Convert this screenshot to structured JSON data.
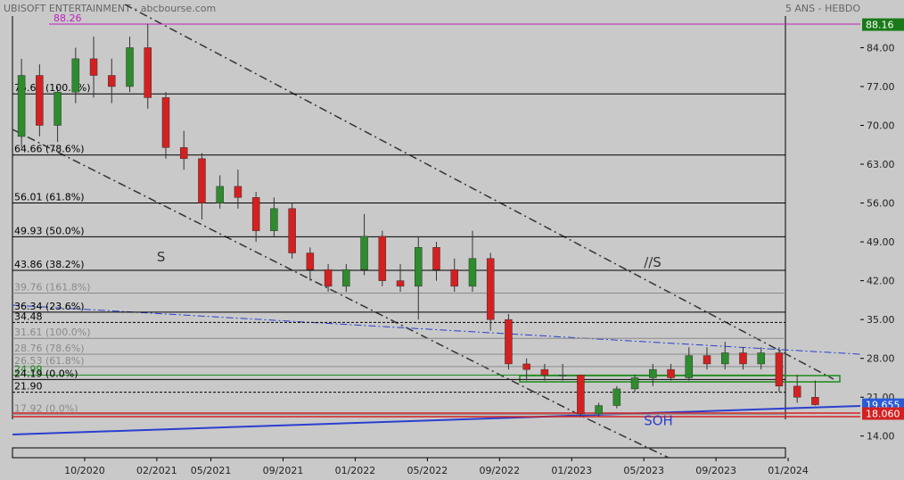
{
  "chart_data": {
    "type": "candlestick",
    "title": "UBISOFT ENTERTAINMENT - abcbourse.com",
    "subtitle": "5 ANS - HEBDO",
    "x": [
      "2020-06",
      "2020-07",
      "2020-08",
      "2020-09",
      "2020-10",
      "2020-11",
      "2020-12",
      "2021-01",
      "2021-02",
      "2021-03",
      "2021-04",
      "2021-05",
      "2021-06",
      "2021-07",
      "2021-08",
      "2021-09",
      "2021-10",
      "2021-11",
      "2021-12",
      "2022-01",
      "2022-02",
      "2022-03",
      "2022-04",
      "2022-05",
      "2022-06",
      "2022-07",
      "2022-08",
      "2022-09",
      "2022-10",
      "2022-11",
      "2022-12",
      "2023-01",
      "2023-02",
      "2023-03",
      "2023-04",
      "2023-05",
      "2023-06",
      "2023-07",
      "2023-08",
      "2023-09",
      "2023-10",
      "2023-11",
      "2023-12",
      "2024-01",
      "2024-02"
    ],
    "open": [
      68,
      79,
      70,
      76,
      82,
      79,
      77,
      84,
      75,
      66,
      64,
      56,
      59,
      57,
      51,
      55,
      47,
      44,
      41,
      44,
      50,
      42,
      41,
      48,
      44,
      41,
      46,
      35,
      27,
      26,
      25,
      25,
      18,
      19.5,
      22.5,
      24.5,
      26,
      24.5,
      28.5,
      27,
      29,
      27,
      29,
      23,
      21
    ],
    "high": [
      82,
      81,
      77,
      84,
      86,
      82,
      86,
      88.26,
      76,
      69,
      65,
      61,
      62,
      58,
      57,
      56,
      48,
      45,
      45,
      54,
      51,
      45,
      50,
      49,
      46,
      51,
      47,
      36,
      28,
      27,
      27,
      25,
      20,
      23,
      25,
      27,
      27,
      30,
      30,
      31,
      30,
      30,
      30,
      25,
      24
    ],
    "low": [
      66,
      68,
      67,
      74,
      75,
      74,
      76,
      73,
      64,
      62,
      53,
      55,
      55,
      49,
      50,
      46,
      42,
      40,
      40,
      43,
      41,
      40,
      35,
      42,
      40,
      40,
      33,
      26,
      24,
      24,
      24,
      17.5,
      17.5,
      19,
      22,
      23,
      24,
      24,
      26,
      26,
      26,
      26,
      22,
      20,
      19.5
    ],
    "close": [
      79,
      70,
      76,
      82,
      79,
      77,
      84,
      75,
      66,
      64,
      56,
      59,
      57,
      51,
      55,
      47,
      44,
      41,
      44,
      50,
      42,
      41,
      48,
      44,
      41,
      46,
      35,
      27,
      26,
      25,
      25,
      18,
      19.5,
      22.5,
      24.5,
      26,
      24.5,
      28.5,
      27,
      29,
      27,
      29,
      23,
      21,
      19.655
    ],
    "up_color": "#2e8b2e",
    "down_color": "#d42020",
    "xlim": [
      "2020-06",
      "2024-05"
    ],
    "xticks": [
      {
        "value": "2020-10",
        "label": "10/2020"
      },
      {
        "value": "2021-02",
        "label": "02/2021"
      },
      {
        "value": "2021-05",
        "label": "05/2021"
      },
      {
        "value": "2021-09",
        "label": "09/2021"
      },
      {
        "value": "2022-01",
        "label": "01/2022"
      },
      {
        "value": "2022-05",
        "label": "05/2022"
      },
      {
        "value": "2022-09",
        "label": "09/2022"
      },
      {
        "value": "2023-01",
        "label": "01/2023"
      },
      {
        "value": "2023-05",
        "label": "05/2023"
      },
      {
        "value": "2023-09",
        "label": "09/2023"
      },
      {
        "value": "2024-01",
        "label": "01/2024"
      }
    ],
    "ylim": [
      10.1,
      89.7
    ],
    "yticks": [
      {
        "value": 84,
        "label": "84.00"
      },
      {
        "value": 77,
        "label": "77.00"
      },
      {
        "value": 70,
        "label": "70.00"
      },
      {
        "value": 63,
        "label": "63.00"
      },
      {
        "value": 56,
        "label": "56.00"
      },
      {
        "value": 49,
        "label": "49.00"
      },
      {
        "value": 42,
        "label": "42.00"
      },
      {
        "value": 35,
        "label": "35.00"
      },
      {
        "value": 28,
        "label": "28.00"
      },
      {
        "value": 21,
        "label": "21.00"
      },
      {
        "value": 14,
        "label": "14.00"
      }
    ],
    "price_tags": [
      {
        "value": 88.16,
        "color": "#1a7a1a"
      },
      {
        "value": 19.655,
        "color": "#2a5bd7"
      },
      {
        "value": 18.06,
        "label": "18.060",
        "color": "#d42020"
      }
    ],
    "levels": [
      {
        "value": 88.26,
        "label": "88.26",
        "color": "#c020c0"
      },
      {
        "value": 75.67,
        "label": "75.67  (100.0%)",
        "color": "#000000"
      },
      {
        "value": 64.66,
        "label": "64.66  (78.6%)",
        "color": "#000000"
      },
      {
        "value": 56.01,
        "label": "56.01  (61.8%)",
        "color": "#000000"
      },
      {
        "value": 49.93,
        "label": "49.93  (50.0%)",
        "color": "#000000"
      },
      {
        "value": 43.86,
        "label": "43.86  (38.2%)",
        "color": "#000000"
      },
      {
        "value": 39.76,
        "label": "39.76  (161.8%)",
        "color": "#8a8a8a"
      },
      {
        "value": 36.34,
        "label": "36.34  (23.6%)",
        "color": "#000000"
      },
      {
        "value": 34.48,
        "label": "34.48",
        "color": "#000000",
        "dashed": true
      },
      {
        "value": 31.61,
        "label": "31.61  (100.0%)",
        "color": "#8a8a8a"
      },
      {
        "value": 28.76,
        "label": "28.76  (78.6%)",
        "color": "#8a8a8a"
      },
      {
        "value": 26.53,
        "label": "26.53  (61.8%)",
        "color": "#8a8a8a"
      },
      {
        "value": 24.99,
        "label": "24.99",
        "color": "#1a8a1a"
      },
      {
        "value": 24.19,
        "label": "24.19  (0.0%)",
        "color": "#000000"
      },
      {
        "value": 21.9,
        "label": "21.90",
        "color": "#000000",
        "dashed": true
      },
      {
        "value": 17.92,
        "label": "17.92  (0.0%)",
        "color": "#8a8a8a"
      }
    ],
    "annotations": [
      {
        "text": "S",
        "value": 45.5,
        "date": "2021-02",
        "color": "#333333"
      },
      {
        "text": "//S",
        "value": 44.5,
        "date": "2023-05",
        "color": "#333333"
      },
      {
        "text": "SOH",
        "value": 16,
        "date": "2023-05",
        "color": "#2a3fd0"
      }
    ]
  }
}
